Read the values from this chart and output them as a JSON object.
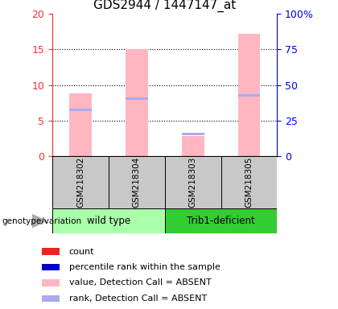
{
  "title": "GDS2944 / 1447147_at",
  "samples": [
    "GSM218302",
    "GSM218304",
    "GSM218303",
    "GSM218305"
  ],
  "groups": [
    "wild type",
    "wild type",
    "Trib1-deficient",
    "Trib1-deficient"
  ],
  "ylim_left": [
    0,
    20
  ],
  "ylim_right": [
    0,
    100
  ],
  "yticks_left": [
    0,
    5,
    10,
    15,
    20
  ],
  "yticks_right": [
    0,
    25,
    50,
    75,
    100
  ],
  "ytick_labels_right": [
    "0",
    "25",
    "50",
    "75",
    "100%"
  ],
  "pink_values": [
    8.8,
    15.0,
    2.8,
    17.2
  ],
  "blue_values": [
    6.5,
    8.1,
    3.1,
    8.5
  ],
  "color_pink": "#FFB6C1",
  "color_lightblue": "#AAAAEE",
  "left_tick_color": "#EE3333",
  "right_tick_color": "#0000EE",
  "legend_items": [
    {
      "label": "count",
      "color": "#EE2222"
    },
    {
      "label": "percentile rank within the sample",
      "color": "#0000CC"
    },
    {
      "label": "value, Detection Call = ABSENT",
      "color": "#FFB6C1"
    },
    {
      "label": "rank, Detection Call = ABSENT",
      "color": "#AAAAEE"
    }
  ],
  "genotype_label": "genotype/variation",
  "sample_bg_color": "#C8C8C8",
  "wildtype_color": "#AAFFAA",
  "trib1_color": "#33CC33",
  "title_fontsize": 11,
  "tick_fontsize": 9,
  "legend_fontsize": 8,
  "bar_width": 0.4
}
